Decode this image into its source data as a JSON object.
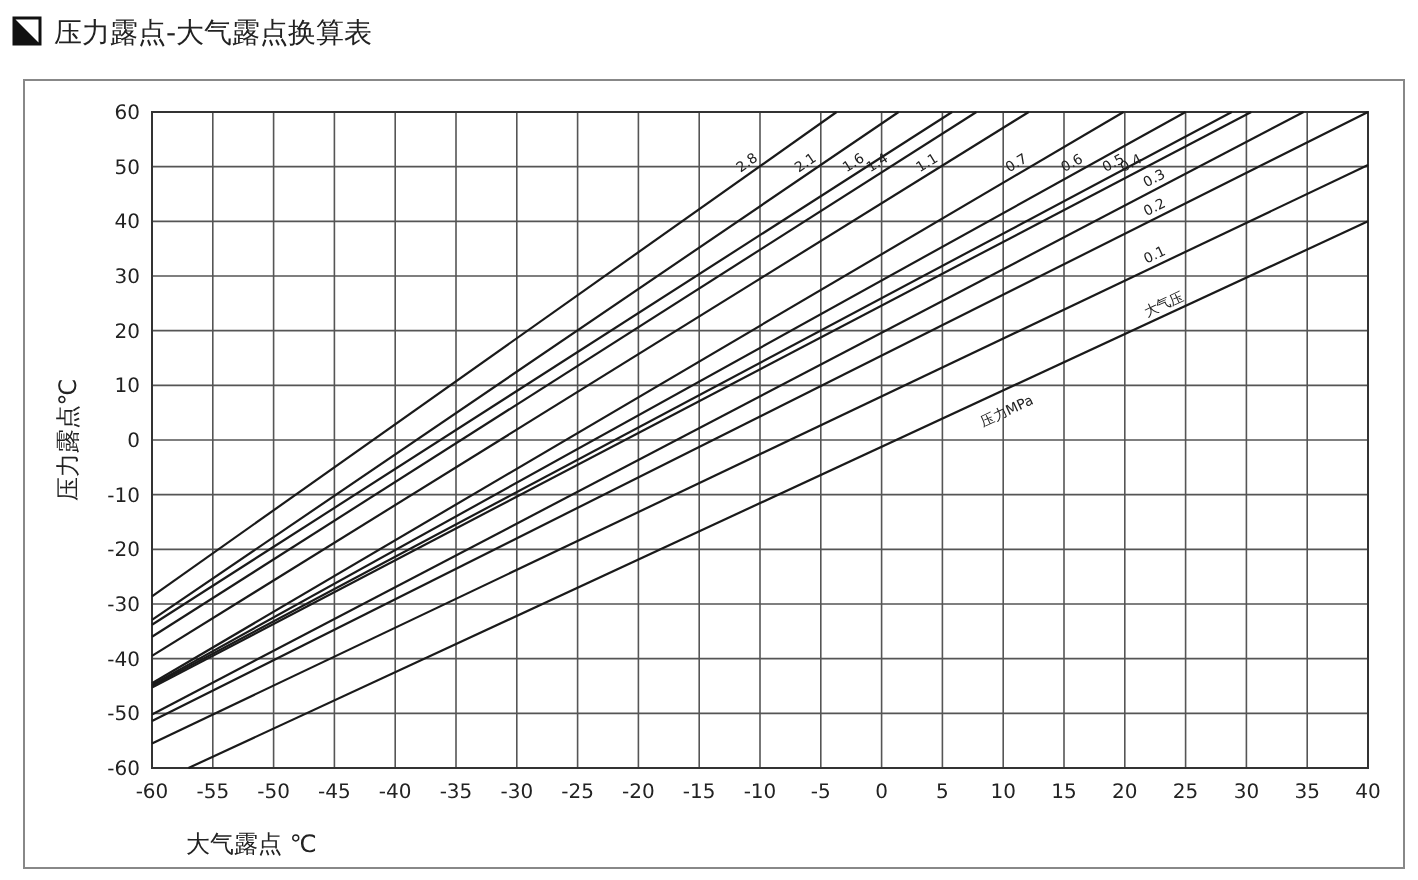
{
  "chart_data": {
    "type": "line",
    "title": "压力露点-大气露点换算表",
    "xlabel": "大气露点 ℃",
    "ylabel": "压力露点℃",
    "legend_title": "压力MPa",
    "xlim": [
      -60,
      40
    ],
    "ylim": [
      -60,
      60
    ],
    "xticks": [
      -60,
      -55,
      -50,
      -45,
      -40,
      -35,
      -30,
      -25,
      -20,
      -15,
      -10,
      -5,
      0,
      5,
      10,
      15,
      20,
      25,
      30,
      35,
      40
    ],
    "yticks": [
      -60,
      -50,
      -40,
      -30,
      -20,
      -10,
      0,
      10,
      20,
      30,
      40,
      50,
      60
    ],
    "grid": true,
    "marker": "none",
    "line_style": "solid",
    "series": [
      {
        "name": "2.8",
        "color": "#1a1a1a",
        "x": [
          -60,
          -3.7
        ],
        "values": [
          -28.6,
          60
        ]
      },
      {
        "name": "2.1",
        "color": "#1a1a1a",
        "x": [
          -60,
          1.4
        ],
        "values": [
          -32.9,
          60
        ]
      },
      {
        "name": "1.6",
        "color": "#1a1a1a",
        "x": [
          -60,
          5.8
        ],
        "values": [
          -33.8,
          60
        ]
      },
      {
        "name": "1.4",
        "color": "#1a1a1a",
        "x": [
          -60,
          7.8
        ],
        "values": [
          -36,
          60
        ]
      },
      {
        "name": "1.1",
        "color": "#1a1a1a",
        "x": [
          -60,
          12.1
        ],
        "values": [
          -39.5,
          60
        ]
      },
      {
        "name": "0.7",
        "color": "#1a1a1a",
        "x": [
          -60,
          19.9
        ],
        "values": [
          -44.5,
          60
        ]
      },
      {
        "name": "0.6",
        "color": "#1a1a1a",
        "x": [
          -60,
          25
        ],
        "values": [
          -44.8,
          60
        ]
      },
      {
        "name": "0.5",
        "color": "#1a1a1a",
        "x": [
          -60,
          28.8
        ],
        "values": [
          -45,
          60
        ]
      },
      {
        "name": "0.4",
        "color": "#1a1a1a",
        "x": [
          -60,
          30.4
        ],
        "values": [
          -45.3,
          60
        ]
      },
      {
        "name": "0.3",
        "color": "#1a1a1a",
        "x": [
          -60,
          34.7
        ],
        "values": [
          -50.2,
          60
        ]
      },
      {
        "name": "0.2",
        "color": "#1a1a1a",
        "x": [
          -60,
          40
        ],
        "values": [
          -51.4,
          60
        ]
      },
      {
        "name": "0.1",
        "color": "#1a1a1a",
        "x": [
          -60,
          40
        ],
        "values": [
          -55.5,
          50.3
        ]
      },
      {
        "name": "大气压",
        "color": "#1a1a1a",
        "x": [
          -57,
          40
        ],
        "values": [
          -60,
          40
        ]
      }
    ]
  }
}
